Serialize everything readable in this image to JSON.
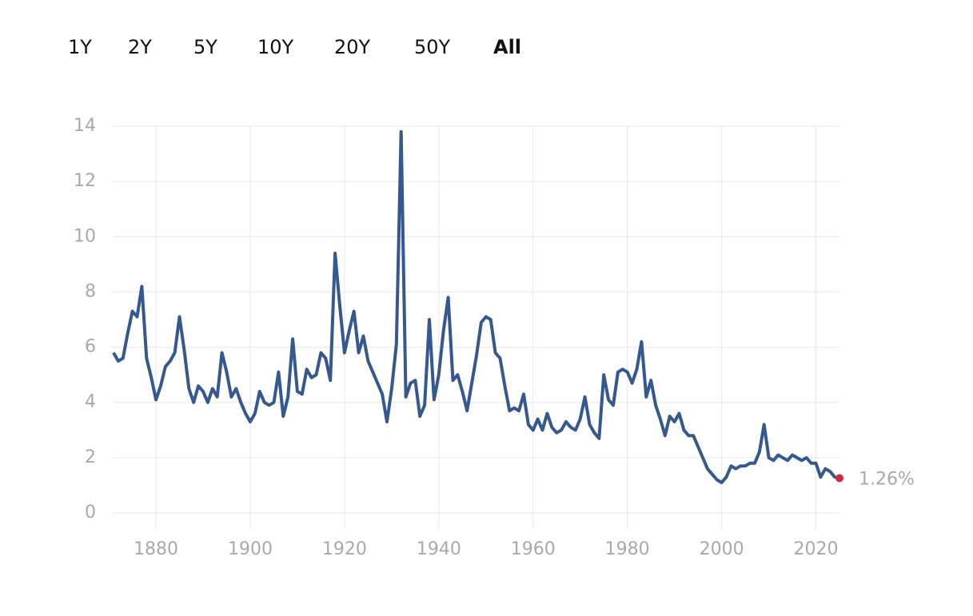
{
  "range_tabs": {
    "options": [
      "1Y",
      "2Y",
      "5Y",
      "10Y",
      "20Y",
      "50Y",
      "All"
    ],
    "selected": 6
  },
  "chart_data": {
    "type": "line",
    "x": [
      1871,
      1872,
      1873,
      1874,
      1875,
      1876,
      1877,
      1878,
      1879,
      1880,
      1881,
      1882,
      1883,
      1884,
      1885,
      1886,
      1887,
      1888,
      1889,
      1890,
      1891,
      1892,
      1893,
      1894,
      1895,
      1896,
      1897,
      1898,
      1899,
      1900,
      1901,
      1902,
      1903,
      1904,
      1905,
      1906,
      1907,
      1908,
      1909,
      1910,
      1911,
      1912,
      1913,
      1914,
      1915,
      1916,
      1917,
      1918,
      1919,
      1920,
      1921,
      1922,
      1923,
      1924,
      1925,
      1926,
      1927,
      1928,
      1929,
      1930,
      1931,
      1932,
      1933,
      1934,
      1935,
      1936,
      1937,
      1938,
      1939,
      1940,
      1941,
      1942,
      1943,
      1944,
      1945,
      1946,
      1947,
      1948,
      1949,
      1950,
      1951,
      1952,
      1953,
      1954,
      1955,
      1956,
      1957,
      1958,
      1959,
      1960,
      1961,
      1962,
      1963,
      1964,
      1965,
      1966,
      1967,
      1968,
      1969,
      1970,
      1971,
      1972,
      1973,
      1974,
      1975,
      1976,
      1977,
      1978,
      1979,
      1980,
      1981,
      1982,
      1983,
      1984,
      1985,
      1986,
      1987,
      1988,
      1989,
      1990,
      1991,
      1992,
      1993,
      1994,
      1995,
      1996,
      1997,
      1998,
      1999,
      2000,
      2001,
      2002,
      2003,
      2004,
      2005,
      2006,
      2007,
      2008,
      2009,
      2010,
      2011,
      2012,
      2013,
      2014,
      2015,
      2016,
      2017,
      2018,
      2019,
      2020,
      2021,
      2022,
      2023,
      2024,
      2025
    ],
    "series": [
      {
        "color": "#34588f",
        "values": [
          5.8,
          5.5,
          5.6,
          6.5,
          7.3,
          7.1,
          8.2,
          5.6,
          4.9,
          4.1,
          4.6,
          5.3,
          5.5,
          5.8,
          7.1,
          5.9,
          4.5,
          4.0,
          4.6,
          4.4,
          4.0,
          4.5,
          4.2,
          5.8,
          5.1,
          4.2,
          4.5,
          4.0,
          3.6,
          3.3,
          3.6,
          4.4,
          4.0,
          3.9,
          4.0,
          5.1,
          3.5,
          4.2,
          6.3,
          4.4,
          4.3,
          5.2,
          4.9,
          5.0,
          5.8,
          5.6,
          4.8,
          9.4,
          7.5,
          5.8,
          6.6,
          7.3,
          5.8,
          6.4,
          5.5,
          5.1,
          4.7,
          4.3,
          3.3,
          4.5,
          6.1,
          13.8,
          4.2,
          4.7,
          4.8,
          3.5,
          3.9,
          7.0,
          4.1,
          5.0,
          6.6,
          7.8,
          4.8,
          5.0,
          4.4,
          3.7,
          4.7,
          5.7,
          6.9,
          7.1,
          7.0,
          5.8,
          5.6,
          4.6,
          3.7,
          3.8,
          3.7,
          4.3,
          3.2,
          3.0,
          3.4,
          3.0,
          3.6,
          3.1,
          2.9,
          3.0,
          3.3,
          3.1,
          3.0,
          3.4,
          4.2,
          3.2,
          2.9,
          2.7,
          5.0,
          4.1,
          3.9,
          5.1,
          5.2,
          5.1,
          4.7,
          5.2,
          6.2,
          4.2,
          4.8,
          3.9,
          3.4,
          2.8,
          3.5,
          3.3,
          3.6,
          3.0,
          2.8,
          2.8,
          2.4,
          2.0,
          1.6,
          1.4,
          1.2,
          1.1,
          1.3,
          1.7,
          1.6,
          1.7,
          1.7,
          1.8,
          1.8,
          2.2,
          3.2,
          2.0,
          1.9,
          2.1,
          2.0,
          1.9,
          2.1,
          2.0,
          1.9,
          2.0,
          1.8,
          1.8,
          1.3,
          1.6,
          1.5,
          1.3,
          1.26
        ]
      }
    ],
    "xlim": [
      1871,
      2025
    ],
    "ylim": [
      0,
      14
    ],
    "xticks": [
      1880,
      1900,
      1920,
      1940,
      1960,
      1980,
      2000,
      2020
    ],
    "yticks": [
      0,
      2,
      4,
      6,
      8,
      10,
      12,
      14
    ],
    "grid": true,
    "last_point": {
      "color": "#d2283a",
      "label": "1.26%"
    }
  }
}
